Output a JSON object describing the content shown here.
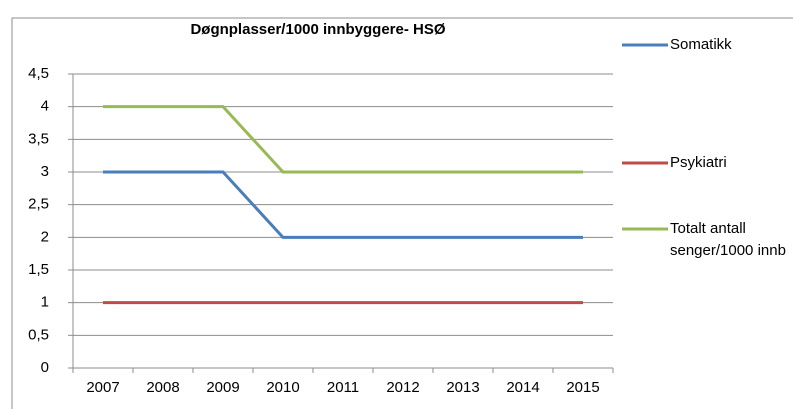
{
  "chart_data": {
    "type": "line",
    "title": "Døgnplasser/1000 innbyggere- HSØ",
    "categories": [
      "2007",
      "2008",
      "2009",
      "2010",
      "2011",
      "2012",
      "2013",
      "2014",
      "2015"
    ],
    "series": [
      {
        "name": "Somatikk",
        "color": "#4a7ebb",
        "values": [
          3,
          3,
          3,
          2,
          2,
          2,
          2,
          2,
          2
        ]
      },
      {
        "name": "Psykiatri",
        "color": "#be4b48",
        "values": [
          1,
          1,
          1,
          1,
          1,
          1,
          1,
          1,
          1
        ]
      },
      {
        "name": "Totalt antall senger/1000 innb",
        "color": "#98b954",
        "values": [
          4,
          4,
          4,
          3,
          3,
          3,
          3,
          3,
          3
        ]
      }
    ],
    "ylim": [
      0,
      4.5
    ],
    "yticks": [
      0,
      {
        "value": 0.5,
        "label": "0,5"
      },
      1,
      {
        "value": 1.5,
        "label": "1,5"
      },
      2,
      {
        "value": 2.5,
        "label": "2,5"
      },
      3,
      {
        "value": 3.5,
        "label": "3,5"
      },
      4,
      {
        "value": 4.5,
        "label": "4,5"
      }
    ],
    "grid": true,
    "legend": "right"
  }
}
